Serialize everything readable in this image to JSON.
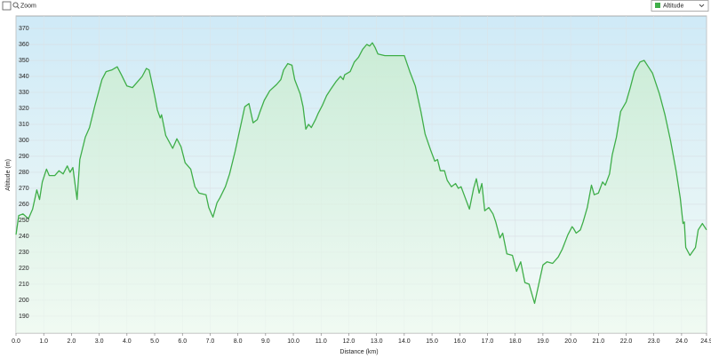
{
  "toolbar": {
    "zoom_label": "Zoom"
  },
  "chart_data": {
    "type": "line",
    "xlabel": "Distance  (km)",
    "ylabel": "Altitude (m)",
    "grid": true,
    "xlim": [
      0,
      24.9
    ],
    "ylim": [
      179.4,
      377.8
    ],
    "xticks": [
      {
        "value": 0,
        "label": "0.0"
      },
      {
        "value": 1,
        "label": "1.0"
      },
      {
        "value": 2,
        "label": "2.0"
      },
      {
        "value": 3,
        "label": "3.0"
      },
      {
        "value": 4,
        "label": "4.0"
      },
      {
        "value": 5,
        "label": "5.0"
      },
      {
        "value": 6,
        "label": "6.0"
      },
      {
        "value": 7,
        "label": "7.0"
      },
      {
        "value": 8,
        "label": "8.0"
      },
      {
        "value": 9,
        "label": "9.0"
      },
      {
        "value": 10,
        "label": "10.0"
      },
      {
        "value": 11,
        "label": "11.0"
      },
      {
        "value": 12,
        "label": "12.0"
      },
      {
        "value": 13,
        "label": "13.0"
      },
      {
        "value": 14,
        "label": "14.0"
      },
      {
        "value": 15,
        "label": "15.0"
      },
      {
        "value": 16,
        "label": "16.0"
      },
      {
        "value": 17,
        "label": "17.0"
      },
      {
        "value": 18,
        "label": "18.0"
      },
      {
        "value": 19,
        "label": "19.0"
      },
      {
        "value": 20,
        "label": "20.0"
      },
      {
        "value": 21,
        "label": "21.0"
      },
      {
        "value": 22,
        "label": "22.0"
      },
      {
        "value": 23,
        "label": "23.0"
      },
      {
        "value": 24,
        "label": "24.0"
      },
      24.9
    ],
    "yticks": [
      190,
      200,
      210,
      220,
      230,
      240,
      250,
      260,
      270,
      280,
      290,
      300,
      310,
      320,
      330,
      340,
      350,
      360,
      370
    ],
    "x": [
      0,
      0.1,
      0.25,
      0.45,
      0.6,
      0.75,
      0.85,
      0.95,
      1.1,
      1.2,
      1.4,
      1.55,
      1.7,
      1.85,
      1.95,
      2.05,
      2.2,
      2.3,
      2.5,
      2.65,
      2.85,
      3.1,
      3.25,
      3.45,
      3.65,
      3.8,
      4.0,
      4.2,
      4.4,
      4.55,
      4.7,
      4.8,
      5.0,
      5.1,
      5.2,
      5.25,
      5.4,
      5.65,
      5.8,
      5.95,
      6.1,
      6.3,
      6.45,
      6.6,
      6.85,
      6.95,
      7.1,
      7.25,
      7.35,
      7.55,
      7.7,
      7.9,
      8.0,
      8.15,
      8.25,
      8.4,
      8.55,
      8.7,
      8.8,
      8.95,
      9.15,
      9.4,
      9.55,
      9.65,
      9.8,
      9.95,
      10.05,
      10.25,
      10.35,
      10.45,
      10.55,
      10.65,
      10.8,
      10.9,
      11.05,
      11.2,
      11.35,
      11.55,
      11.7,
      11.8,
      11.85,
      12.05,
      12.2,
      12.35,
      12.5,
      12.65,
      12.75,
      12.85,
      12.95,
      13.05,
      13.3,
      13.7,
      14.0,
      14.2,
      14.4,
      14.6,
      14.75,
      14.95,
      15.1,
      15.2,
      15.3,
      15.45,
      15.55,
      15.7,
      15.85,
      15.95,
      16.05,
      16.2,
      16.35,
      16.5,
      16.6,
      16.7,
      16.8,
      16.9,
      17.05,
      17.2,
      17.3,
      17.45,
      17.55,
      17.7,
      17.9,
      18.05,
      18.2,
      18.35,
      18.5,
      18.7,
      18.85,
      19.0,
      19.15,
      19.35,
      19.55,
      19.7,
      19.9,
      20.05,
      20.1,
      20.2,
      20.35,
      20.45,
      20.6,
      20.75,
      20.85,
      21.0,
      21.15,
      21.25,
      21.4,
      21.5,
      21.65,
      21.8,
      22.0,
      22.15,
      22.3,
      22.5,
      22.65,
      22.8,
      22.95,
      23.2,
      23.4,
      23.6,
      23.8,
      23.95,
      24.05,
      24.1,
      24.15,
      24.3,
      24.5,
      24.6,
      24.75,
      24.9
    ],
    "series": [
      {
        "name": "Altitude",
        "color": "#3fae49",
        "values": [
          241,
          253,
          254,
          251,
          257,
          269,
          263,
          274,
          282,
          278,
          278,
          281,
          279,
          284,
          280,
          283,
          263,
          288,
          302,
          308,
          322,
          338,
          343,
          344,
          346,
          341,
          334,
          333,
          337,
          340,
          345,
          344,
          328,
          319,
          314,
          316,
          303,
          295,
          301,
          296,
          286,
          282,
          271,
          267,
          266,
          258,
          252,
          261,
          264,
          271,
          279,
          293,
          301,
          313,
          321,
          323,
          311,
          313,
          318,
          325,
          331,
          335,
          338,
          344,
          348,
          347,
          338,
          329,
          321,
          307,
          310,
          308,
          313,
          317,
          322,
          328,
          332,
          337,
          340,
          338,
          341,
          343,
          349,
          352,
          357,
          360,
          359,
          361,
          358,
          354,
          353,
          353,
          353,
          343,
          334,
          318,
          304,
          294,
          287,
          288,
          281,
          281,
          275,
          271,
          273,
          270,
          271,
          264,
          257,
          270,
          276,
          267,
          273,
          256,
          258,
          254,
          249,
          239,
          242,
          229,
          228,
          218,
          224,
          211,
          210,
          198,
          210,
          222,
          224,
          223,
          227,
          232,
          241,
          246,
          245,
          242,
          244,
          249,
          258,
          272,
          266,
          267,
          274,
          272,
          279,
          291,
          302,
          318,
          324,
          333,
          343,
          349,
          350,
          346,
          342,
          329,
          316,
          300,
          281,
          264,
          248,
          249,
          233,
          228,
          233,
          244,
          248,
          244
        ]
      }
    ]
  }
}
